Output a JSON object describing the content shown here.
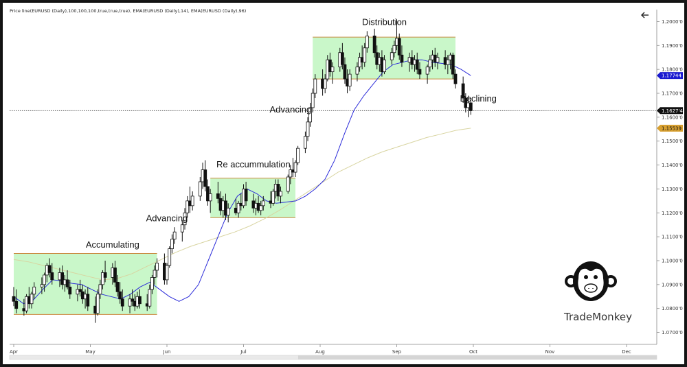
{
  "header_text": "Price line(EURUSD (Daily),100,100,100,true,true,true), EMA(EURUSD (Daily),14), EMA(EURUSD (Daily),96)",
  "brand": {
    "name": "TradeMonkey",
    "icon": "monkey-logo-icon"
  },
  "back_icon": "arrow-left-icon",
  "colors": {
    "zone_fill": "#c9f7c9",
    "zone_line": "#c98a40",
    "ema14": "#2b2bd9",
    "ema96": "#d8d4a0",
    "price_tag": "#111111",
    "ema14_tag": "#1b1bd0",
    "ema96_tag": "#d8a030",
    "up_candle": "#ffffff",
    "down_candle": "#111111"
  },
  "chart_data": {
    "type": "candlestick",
    "symbol": "EURUSD",
    "timeframe": "Daily",
    "ylim": [
      1.065,
      1.205
    ],
    "y_ticks": [
      "1.2000'0",
      "1.1900'0",
      "1.1800'0",
      "1.1700'0",
      "1.1600'0",
      "1.1500'0",
      "1.1400'0",
      "1.1300'0",
      "1.1200'0",
      "1.1100'0",
      "1.1000'0",
      "1.0900'0",
      "1.0800'0",
      "1.0700'0"
    ],
    "x_ticks": [
      "Apr",
      "May",
      "Jun",
      "Jul",
      "Aug",
      "Sep",
      "Oct",
      "Nov",
      "Dec"
    ],
    "last_price": {
      "value": 1.16274,
      "label": "1.1627'4"
    },
    "ema14_last": {
      "value": 1.17744,
      "label": "1.17744"
    },
    "ema96_last": {
      "value": 1.15539,
      "label": "1.15539"
    },
    "zones": [
      {
        "label": "Accumulating",
        "from": "Apr",
        "to": "May 28",
        "low": 1.0775,
        "high": 1.103
      },
      {
        "label": "Re accummulation",
        "from": "Jun 18",
        "to": "Jul 22",
        "low": 1.118,
        "high": 1.1345
      },
      {
        "label": "Distribution",
        "from": "Jul 29",
        "to": "Sep 24",
        "low": 1.176,
        "high": 1.1935
      }
    ],
    "annotations": [
      {
        "text": "Accumulating",
        "date": "May 10",
        "price": 1.1055
      },
      {
        "text": "Advancing",
        "date": "Jun 1",
        "price": 1.1165
      },
      {
        "text": "Re accummulation",
        "date": "Jul 5",
        "price": 1.139
      },
      {
        "text": "Advancing",
        "date": "Jul 20",
        "price": 1.162
      },
      {
        "text": "Distribution",
        "date": "Aug 27",
        "price": 1.1985
      },
      {
        "text": "Declining",
        "date": "Oct 3",
        "price": 1.1665
      }
    ],
    "candles": [
      {
        "d": "Apr 1",
        "o": 1.085,
        "h": 1.089,
        "l": 1.081,
        "c": 1.083
      },
      {
        "d": "Apr 2",
        "o": 1.083,
        "h": 1.088,
        "l": 1.078,
        "c": 1.08
      },
      {
        "d": "Apr 5",
        "o": 1.08,
        "h": 1.084,
        "l": 1.077,
        "c": 1.079
      },
      {
        "d": "Apr 6",
        "o": 1.079,
        "h": 1.086,
        "l": 1.078,
        "c": 1.085
      },
      {
        "d": "Apr 7",
        "o": 1.085,
        "h": 1.089,
        "l": 1.08,
        "c": 1.082
      },
      {
        "d": "Apr 8",
        "o": 1.082,
        "h": 1.087,
        "l": 1.08,
        "c": 1.086
      },
      {
        "d": "Apr 9",
        "o": 1.086,
        "h": 1.091,
        "l": 1.084,
        "c": 1.089
      },
      {
        "d": "Apr 12",
        "o": 1.089,
        "h": 1.093,
        "l": 1.086,
        "c": 1.09
      },
      {
        "d": "Apr 13",
        "o": 1.09,
        "h": 1.095,
        "l": 1.087,
        "c": 1.094
      },
      {
        "d": "Apr 14",
        "o": 1.094,
        "h": 1.099,
        "l": 1.091,
        "c": 1.098
      },
      {
        "d": "Apr 15",
        "o": 1.098,
        "h": 1.101,
        "l": 1.093,
        "c": 1.095
      },
      {
        "d": "Apr 16",
        "o": 1.095,
        "h": 1.099,
        "l": 1.09,
        "c": 1.092
      },
      {
        "d": "Apr 19",
        "o": 1.092,
        "h": 1.097,
        "l": 1.089,
        "c": 1.095
      },
      {
        "d": "Apr 20",
        "o": 1.095,
        "h": 1.098,
        "l": 1.088,
        "c": 1.09
      },
      {
        "d": "Apr 21",
        "o": 1.09,
        "h": 1.094,
        "l": 1.087,
        "c": 1.092
      },
      {
        "d": "Apr 22",
        "o": 1.092,
        "h": 1.096,
        "l": 1.088,
        "c": 1.089
      },
      {
        "d": "Apr 23",
        "o": 1.089,
        "h": 1.092,
        "l": 1.084,
        "c": 1.086
      },
      {
        "d": "Apr 26",
        "o": 1.086,
        "h": 1.09,
        "l": 1.083,
        "c": 1.088
      },
      {
        "d": "Apr 27",
        "o": 1.088,
        "h": 1.092,
        "l": 1.085,
        "c": 1.087
      },
      {
        "d": "Apr 28",
        "o": 1.087,
        "h": 1.09,
        "l": 1.082,
        "c": 1.084
      },
      {
        "d": "Apr 29",
        "o": 1.084,
        "h": 1.088,
        "l": 1.08,
        "c": 1.086
      },
      {
        "d": "Apr 30",
        "o": 1.086,
        "h": 1.089,
        "l": 1.079,
        "c": 1.081
      },
      {
        "d": "May 3",
        "o": 1.081,
        "h": 1.085,
        "l": 1.074,
        "c": 1.078
      },
      {
        "d": "May 4",
        "o": 1.078,
        "h": 1.088,
        "l": 1.077,
        "c": 1.086
      },
      {
        "d": "May 5",
        "o": 1.086,
        "h": 1.092,
        "l": 1.084,
        "c": 1.09
      },
      {
        "d": "May 6",
        "o": 1.09,
        "h": 1.096,
        "l": 1.088,
        "c": 1.095
      },
      {
        "d": "May 7",
        "o": 1.095,
        "h": 1.1,
        "l": 1.091,
        "c": 1.093
      },
      {
        "d": "May 10",
        "o": 1.093,
        "h": 1.099,
        "l": 1.09,
        "c": 1.097
      },
      {
        "d": "May 11",
        "o": 1.097,
        "h": 1.1,
        "l": 1.089,
        "c": 1.091
      },
      {
        "d": "May 12",
        "o": 1.091,
        "h": 1.094,
        "l": 1.085,
        "c": 1.087
      },
      {
        "d": "May 13",
        "o": 1.087,
        "h": 1.091,
        "l": 1.082,
        "c": 1.084
      },
      {
        "d": "May 14",
        "o": 1.084,
        "h": 1.088,
        "l": 1.079,
        "c": 1.081
      },
      {
        "d": "May 17",
        "o": 1.081,
        "h": 1.086,
        "l": 1.078,
        "c": 1.084
      },
      {
        "d": "May 18",
        "o": 1.084,
        "h": 1.088,
        "l": 1.081,
        "c": 1.083
      },
      {
        "d": "May 19",
        "o": 1.083,
        "h": 1.086,
        "l": 1.079,
        "c": 1.081
      },
      {
        "d": "May 20",
        "o": 1.081,
        "h": 1.087,
        "l": 1.08,
        "c": 1.085
      },
      {
        "d": "May 21",
        "o": 1.085,
        "h": 1.088,
        "l": 1.08,
        "c": 1.082
      },
      {
        "d": "May 24",
        "o": 1.082,
        "h": 1.086,
        "l": 1.079,
        "c": 1.081
      },
      {
        "d": "May 25",
        "o": 1.081,
        "h": 1.09,
        "l": 1.08,
        "c": 1.088
      },
      {
        "d": "May 26",
        "o": 1.088,
        "h": 1.094,
        "l": 1.086,
        "c": 1.093
      },
      {
        "d": "May 27",
        "o": 1.093,
        "h": 1.098,
        "l": 1.09,
        "c": 1.096
      },
      {
        "d": "May 28",
        "o": 1.096,
        "h": 1.101,
        "l": 1.093,
        "c": 1.099
      },
      {
        "d": "May 31",
        "o": 1.099,
        "h": 1.103,
        "l": 1.09,
        "c": 1.092
      },
      {
        "d": "Jun 1",
        "o": 1.092,
        "h": 1.099,
        "l": 1.09,
        "c": 1.098
      },
      {
        "d": "Jun 2",
        "o": 1.098,
        "h": 1.106,
        "l": 1.097,
        "c": 1.105
      },
      {
        "d": "Jun 3",
        "o": 1.105,
        "h": 1.111,
        "l": 1.103,
        "c": 1.109
      },
      {
        "d": "Jun 4",
        "o": 1.109,
        "h": 1.114,
        "l": 1.107,
        "c": 1.112
      },
      {
        "d": "Jun 7",
        "o": 1.112,
        "h": 1.117,
        "l": 1.108,
        "c": 1.115
      },
      {
        "d": "Jun 8",
        "o": 1.115,
        "h": 1.122,
        "l": 1.113,
        "c": 1.12
      },
      {
        "d": "Jun 9",
        "o": 1.12,
        "h": 1.127,
        "l": 1.118,
        "c": 1.125
      },
      {
        "d": "Jun 10",
        "o": 1.125,
        "h": 1.131,
        "l": 1.12,
        "c": 1.123
      },
      {
        "d": "Jun 11",
        "o": 1.123,
        "h": 1.129,
        "l": 1.121,
        "c": 1.127
      },
      {
        "d": "Jun 14",
        "o": 1.127,
        "h": 1.135,
        "l": 1.125,
        "c": 1.133
      },
      {
        "d": "Jun 15",
        "o": 1.133,
        "h": 1.141,
        "l": 1.13,
        "c": 1.138
      },
      {
        "d": "Jun 16",
        "o": 1.138,
        "h": 1.142,
        "l": 1.129,
        "c": 1.131
      },
      {
        "d": "Jun 17",
        "o": 1.131,
        "h": 1.134,
        "l": 1.123,
        "c": 1.125
      },
      {
        "d": "Jun 18",
        "o": 1.125,
        "h": 1.13,
        "l": 1.12,
        "c": 1.128
      },
      {
        "d": "Jun 21",
        "o": 1.128,
        "h": 1.133,
        "l": 1.124,
        "c": 1.126
      },
      {
        "d": "Jun 22",
        "o": 1.126,
        "h": 1.129,
        "l": 1.119,
        "c": 1.121
      },
      {
        "d": "Jun 23",
        "o": 1.121,
        "h": 1.127,
        "l": 1.118,
        "c": 1.125
      },
      {
        "d": "Jun 24",
        "o": 1.125,
        "h": 1.128,
        "l": 1.117,
        "c": 1.119
      },
      {
        "d": "Jun 25",
        "o": 1.119,
        "h": 1.124,
        "l": 1.116,
        "c": 1.122
      },
      {
        "d": "Jun 28",
        "o": 1.122,
        "h": 1.126,
        "l": 1.119,
        "c": 1.12
      },
      {
        "d": "Jun 29",
        "o": 1.12,
        "h": 1.125,
        "l": 1.118,
        "c": 1.124
      },
      {
        "d": "Jun 30",
        "o": 1.124,
        "h": 1.128,
        "l": 1.121,
        "c": 1.123
      },
      {
        "d": "Jul 1",
        "o": 1.123,
        "h": 1.132,
        "l": 1.122,
        "c": 1.13
      },
      {
        "d": "Jul 2",
        "o": 1.13,
        "h": 1.133,
        "l": 1.123,
        "c": 1.125
      },
      {
        "d": "Jul 5",
        "o": 1.125,
        "h": 1.128,
        "l": 1.12,
        "c": 1.122
      },
      {
        "d": "Jul 6",
        "o": 1.122,
        "h": 1.126,
        "l": 1.119,
        "c": 1.124
      },
      {
        "d": "Jul 7",
        "o": 1.124,
        "h": 1.127,
        "l": 1.12,
        "c": 1.121
      },
      {
        "d": "Jul 8",
        "o": 1.121,
        "h": 1.125,
        "l": 1.119,
        "c": 1.123
      },
      {
        "d": "Jul 9",
        "o": 1.123,
        "h": 1.127,
        "l": 1.121,
        "c": 1.125
      },
      {
        "d": "Jul 12",
        "o": 1.125,
        "h": 1.129,
        "l": 1.122,
        "c": 1.124
      },
      {
        "d": "Jul 13",
        "o": 1.124,
        "h": 1.13,
        "l": 1.123,
        "c": 1.129
      },
      {
        "d": "Jul 14",
        "o": 1.129,
        "h": 1.134,
        "l": 1.126,
        "c": 1.132
      },
      {
        "d": "Jul 15",
        "o": 1.132,
        "h": 1.134,
        "l": 1.125,
        "c": 1.127
      },
      {
        "d": "Jul 16",
        "o": 1.127,
        "h": 1.131,
        "l": 1.124,
        "c": 1.129
      },
      {
        "d": "Jul 19",
        "o": 1.129,
        "h": 1.136,
        "l": 1.128,
        "c": 1.135
      },
      {
        "d": "Jul 20",
        "o": 1.135,
        "h": 1.14,
        "l": 1.132,
        "c": 1.138
      },
      {
        "d": "Jul 21",
        "o": 1.138,
        "h": 1.143,
        "l": 1.135,
        "c": 1.137
      },
      {
        "d": "Jul 22",
        "o": 1.137,
        "h": 1.142,
        "l": 1.135,
        "c": 1.141
      },
      {
        "d": "Jul 23",
        "o": 1.141,
        "h": 1.148,
        "l": 1.14,
        "c": 1.147
      },
      {
        "d": "Jul 26",
        "o": 1.147,
        "h": 1.154,
        "l": 1.145,
        "c": 1.152
      },
      {
        "d": "Jul 27",
        "o": 1.152,
        "h": 1.16,
        "l": 1.15,
        "c": 1.158
      },
      {
        "d": "Jul 28",
        "o": 1.158,
        "h": 1.166,
        "l": 1.156,
        "c": 1.164
      },
      {
        "d": "Jul 29",
        "o": 1.164,
        "h": 1.172,
        "l": 1.162,
        "c": 1.17
      },
      {
        "d": "Jul 30",
        "o": 1.17,
        "h": 1.178,
        "l": 1.168,
        "c": 1.176
      },
      {
        "d": "Aug 2",
        "o": 1.176,
        "h": 1.18,
        "l": 1.169,
        "c": 1.172
      },
      {
        "d": "Aug 3",
        "o": 1.172,
        "h": 1.178,
        "l": 1.17,
        "c": 1.176
      },
      {
        "d": "Aug 4",
        "o": 1.176,
        "h": 1.186,
        "l": 1.175,
        "c": 1.184
      },
      {
        "d": "Aug 5",
        "o": 1.184,
        "h": 1.187,
        "l": 1.177,
        "c": 1.179
      },
      {
        "d": "Aug 6",
        "o": 1.179,
        "h": 1.183,
        "l": 1.174,
        "c": 1.181
      },
      {
        "d": "Aug 9",
        "o": 1.181,
        "h": 1.189,
        "l": 1.179,
        "c": 1.187
      },
      {
        "d": "Aug 10",
        "o": 1.187,
        "h": 1.191,
        "l": 1.18,
        "c": 1.182
      },
      {
        "d": "Aug 11",
        "o": 1.182,
        "h": 1.185,
        "l": 1.174,
        "c": 1.176
      },
      {
        "d": "Aug 12",
        "o": 1.176,
        "h": 1.18,
        "l": 1.17,
        "c": 1.173
      },
      {
        "d": "Aug 13",
        "o": 1.173,
        "h": 1.18,
        "l": 1.171,
        "c": 1.178
      },
      {
        "d": "Aug 16",
        "o": 1.178,
        "h": 1.183,
        "l": 1.175,
        "c": 1.181
      },
      {
        "d": "Aug 17",
        "o": 1.181,
        "h": 1.187,
        "l": 1.179,
        "c": 1.185
      },
      {
        "d": "Aug 18",
        "o": 1.185,
        "h": 1.19,
        "l": 1.18,
        "c": 1.183
      },
      {
        "d": "Aug 19",
        "o": 1.183,
        "h": 1.191,
        "l": 1.181,
        "c": 1.189
      },
      {
        "d": "Aug 20",
        "o": 1.189,
        "h": 1.196,
        "l": 1.187,
        "c": 1.194
      },
      {
        "d": "Aug 23",
        "o": 1.194,
        "h": 1.197,
        "l": 1.185,
        "c": 1.187
      },
      {
        "d": "Aug 24",
        "o": 1.187,
        "h": 1.19,
        "l": 1.18,
        "c": 1.182
      },
      {
        "d": "Aug 25",
        "o": 1.182,
        "h": 1.187,
        "l": 1.179,
        "c": 1.185
      },
      {
        "d": "Aug 26",
        "o": 1.185,
        "h": 1.188,
        "l": 1.177,
        "c": 1.179
      },
      {
        "d": "Aug 27",
        "o": 1.179,
        "h": 1.186,
        "l": 1.178,
        "c": 1.184
      },
      {
        "d": "Aug 30",
        "o": 1.184,
        "h": 1.189,
        "l": 1.182,
        "c": 1.187
      },
      {
        "d": "Aug 31",
        "o": 1.187,
        "h": 1.192,
        "l": 1.185,
        "c": 1.19
      },
      {
        "d": "Sep 1",
        "o": 1.19,
        "h": 1.201,
        "l": 1.188,
        "c": 1.193
      },
      {
        "d": "Sep 2",
        "o": 1.193,
        "h": 1.195,
        "l": 1.184,
        "c": 1.186
      },
      {
        "d": "Sep 3",
        "o": 1.186,
        "h": 1.19,
        "l": 1.181,
        "c": 1.183
      },
      {
        "d": "Sep 6",
        "o": 1.183,
        "h": 1.187,
        "l": 1.179,
        "c": 1.185
      },
      {
        "d": "Sep 7",
        "o": 1.185,
        "h": 1.188,
        "l": 1.18,
        "c": 1.182
      },
      {
        "d": "Sep 8",
        "o": 1.182,
        "h": 1.186,
        "l": 1.179,
        "c": 1.184
      },
      {
        "d": "Sep 9",
        "o": 1.184,
        "h": 1.187,
        "l": 1.178,
        "c": 1.18
      },
      {
        "d": "Sep 10",
        "o": 1.18,
        "h": 1.183,
        "l": 1.176,
        "c": 1.178
      },
      {
        "d": "Sep 13",
        "o": 1.178,
        "h": 1.182,
        "l": 1.174,
        "c": 1.181
      },
      {
        "d": "Sep 14",
        "o": 1.181,
        "h": 1.186,
        "l": 1.179,
        "c": 1.184
      },
      {
        "d": "Sep 15",
        "o": 1.184,
        "h": 1.188,
        "l": 1.18,
        "c": 1.186
      },
      {
        "d": "Sep 16",
        "o": 1.186,
        "h": 1.189,
        "l": 1.181,
        "c": 1.183
      },
      {
        "d": "Sep 17",
        "o": 1.183,
        "h": 1.187,
        "l": 1.18,
        "c": 1.185
      },
      {
        "d": "Sep 20",
        "o": 1.185,
        "h": 1.188,
        "l": 1.18,
        "c": 1.182
      },
      {
        "d": "Sep 21",
        "o": 1.182,
        "h": 1.186,
        "l": 1.178,
        "c": 1.184
      },
      {
        "d": "Sep 22",
        "o": 1.184,
        "h": 1.187,
        "l": 1.18,
        "c": 1.186
      },
      {
        "d": "Sep 23",
        "o": 1.186,
        "h": 1.187,
        "l": 1.176,
        "c": 1.178
      },
      {
        "d": "Sep 24",
        "o": 1.178,
        "h": 1.18,
        "l": 1.172,
        "c": 1.174
      },
      {
        "d": "Sep 27",
        "o": 1.174,
        "h": 1.177,
        "l": 1.166,
        "c": 1.168
      },
      {
        "d": "Sep 28",
        "o": 1.168,
        "h": 1.17,
        "l": 1.162,
        "c": 1.164
      },
      {
        "d": "Sep 29",
        "o": 1.164,
        "h": 1.169,
        "l": 1.16,
        "c": 1.166
      },
      {
        "d": "Sep 30",
        "o": 1.166,
        "h": 1.168,
        "l": 1.161,
        "c": 1.1627
      }
    ],
    "ema14": [
      1.085,
      1.082,
      1.0835,
      1.088,
      1.092,
      1.0915,
      1.0905,
      1.09,
      1.088,
      1.086,
      1.085,
      1.084,
      1.086,
      1.089,
      1.091,
      1.088,
      1.085,
      1.083,
      1.085,
      1.09,
      1.1,
      1.11,
      1.12,
      1.127,
      1.13,
      1.128,
      1.125,
      1.124,
      1.1245,
      1.125,
      1.127,
      1.13,
      1.134,
      1.142,
      1.153,
      1.163,
      1.169,
      1.174,
      1.179,
      1.182,
      1.183,
      1.184,
      1.184,
      1.183,
      1.1825,
      1.182,
      1.18,
      1.1774
    ],
    "ema96": [
      1.1005,
      1.0995,
      1.098,
      1.0965,
      1.095,
      1.0935,
      1.092,
      1.0925,
      1.0945,
      1.0975,
      1.1005,
      1.1035,
      1.106,
      1.108,
      1.11,
      1.112,
      1.1145,
      1.1175,
      1.121,
      1.125,
      1.129,
      1.133,
      1.137,
      1.14,
      1.143,
      1.1455,
      1.1475,
      1.1495,
      1.1515,
      1.153,
      1.1545,
      1.1554
    ]
  }
}
